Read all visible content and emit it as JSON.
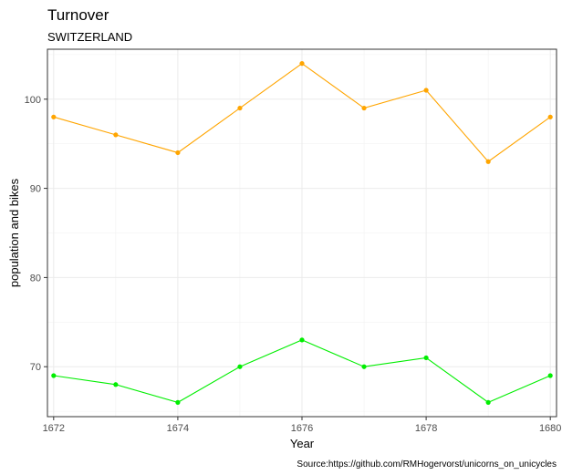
{
  "chart_data": {
    "type": "line",
    "title": "Turnover",
    "subtitle": "SWITZERLAND",
    "xlabel": "Year",
    "ylabel": "population and bikes",
    "caption": "Source:https://github.com/RMHogervorst/unicorns_on_unicycles",
    "x": [
      1672,
      1673,
      1674,
      1675,
      1676,
      1677,
      1678,
      1679,
      1680
    ],
    "xlim": [
      1671.9,
      1680.1
    ],
    "ylim": [
      64.4,
      105.6
    ],
    "xticks": [
      1672,
      1674,
      1676,
      1678,
      1680
    ],
    "yticks": [
      70,
      80,
      90,
      100
    ],
    "grid": true,
    "legend": "none",
    "series": [
      {
        "color": "#FFA500",
        "values": [
          98,
          96,
          94,
          99,
          104,
          99,
          101,
          93,
          98
        ]
      },
      {
        "color": "#00EE00",
        "values": [
          69,
          68,
          66,
          70,
          73,
          70,
          71,
          66,
          69
        ]
      }
    ]
  }
}
